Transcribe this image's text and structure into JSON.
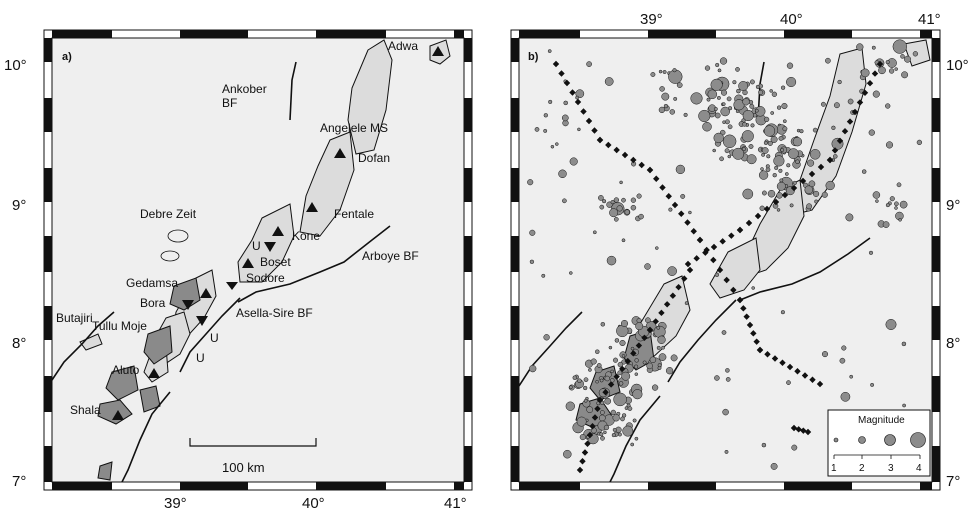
{
  "colors": {
    "map_background": "#efefef",
    "volcanic_field": "#dcdcdc",
    "dark_field": "#8a8a8a",
    "event": "#8c8c8c",
    "outline": "#111111"
  },
  "axis": {
    "lon_labels": [
      "39°",
      "40°",
      "41°"
    ],
    "lat_labels": [
      "10°",
      "9°",
      "8°",
      "7°"
    ]
  },
  "panel_a": {
    "letter": "a)",
    "labels": {
      "adwa": "Adwa",
      "ankober": "Ankober",
      "ankober_bf": "BF",
      "angelele": "Angelele MS",
      "dofan": "Dofan",
      "fentale": "Fentale",
      "debre_zeit": "Debre Zeit",
      "kone": "Kone",
      "u1": "U",
      "boset": "Boset",
      "sodore": "Sodore",
      "arboye": "Arboye BF",
      "gedamsa": "Gedamsa",
      "bora": "Bora",
      "butajiri": "Butajiri",
      "tullu_moje": "Tullu Moje",
      "asella": "Asella-Sire BF",
      "u2": "U",
      "u3": "U",
      "aluto": "Aluto",
      "shala": "Shala"
    },
    "scale_bar": "100 km"
  },
  "panel_b": {
    "letter": "b)",
    "legend": {
      "title": "Magnitude",
      "values": [
        "1",
        "2",
        "3",
        "4"
      ]
    }
  }
}
